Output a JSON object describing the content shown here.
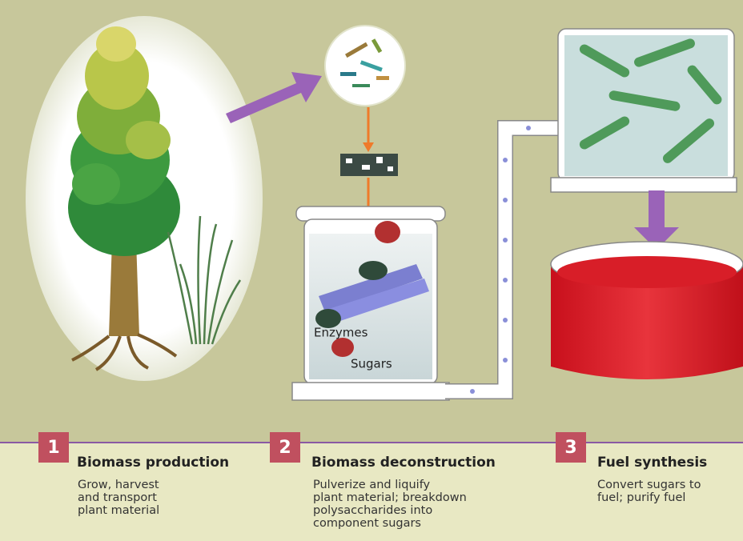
{
  "labels": {
    "enzymes": "Enzymes",
    "sugars": "Sugars"
  },
  "steps": [
    {
      "number": "1",
      "title": "Biomass production",
      "description": [
        "Grow, harvest",
        "and transport",
        "plant material"
      ]
    },
    {
      "number": "2",
      "title": "Biomass deconstruction",
      "description": [
        "Pulverize and liquify",
        "plant material; breakdown",
        "polysaccharides into",
        "component sugars"
      ]
    },
    {
      "number": "3",
      "title": "Fuel synthesis",
      "description": [
        "Convert sugars to",
        "fuel; purify fuel"
      ]
    }
  ]
}
